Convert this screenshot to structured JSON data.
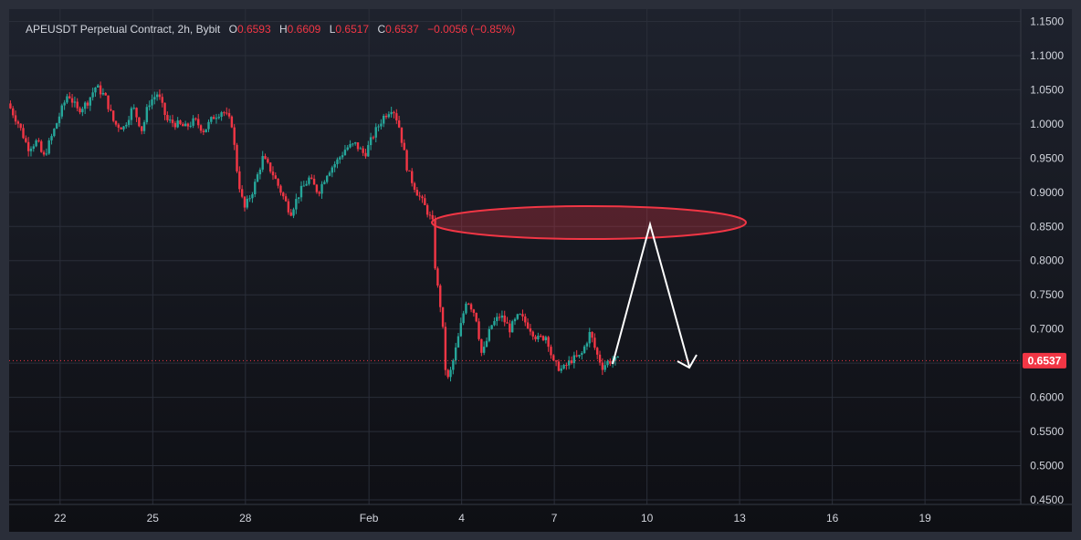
{
  "chart_data": {
    "type": "candlestick",
    "symbol": "APEUSDT Perpetual Contract",
    "interval": "2h",
    "exchange": "Bybit",
    "ohlc": {
      "O": "0.6593",
      "H": "0.6609",
      "L": "0.6517",
      "C": "0.6537",
      "change": "−0.0056",
      "change_pct": "(−0.85%)"
    },
    "last_price": 0.6537,
    "last_price_label": "0.6537",
    "ylim": [
      0.45,
      1.16
    ],
    "y_ticks": [
      "1.1500",
      "1.1000",
      "1.0500",
      "1.0000",
      "0.9500",
      "0.9000",
      "0.8500",
      "0.8000",
      "0.7500",
      "0.7000",
      "0.6500",
      "0.6000",
      "0.5500",
      "0.5000",
      "0.4500"
    ],
    "x_ticks": [
      "22",
      "25",
      "28",
      "Feb",
      "4",
      "7",
      "10",
      "13",
      "16",
      "19"
    ],
    "x_tick_days": [
      22,
      25,
      28,
      32,
      35,
      38,
      41,
      44,
      47,
      50
    ],
    "x_range": [
      20.35,
      53.1
    ],
    "grid": true,
    "up_color": "#26a69a",
    "down_color": "#f23645",
    "price_path": [
      [
        20.35,
        1.03
      ],
      [
        20.7,
        1.0
      ],
      [
        21.0,
        0.965
      ],
      [
        21.3,
        0.975
      ],
      [
        21.5,
        0.95
      ],
      [
        21.8,
        0.985
      ],
      [
        22.0,
        1.01
      ],
      [
        22.3,
        1.045
      ],
      [
        22.6,
        1.02
      ],
      [
        22.9,
        1.03
      ],
      [
        23.2,
        1.055
      ],
      [
        23.5,
        1.04
      ],
      [
        23.8,
        1.0
      ],
      [
        24.1,
        0.995
      ],
      [
        24.4,
        1.025
      ],
      [
        24.7,
        0.99
      ],
      [
        24.9,
        1.03
      ],
      [
        25.2,
        1.045
      ],
      [
        25.5,
        1.005
      ],
      [
        25.8,
        1.0
      ],
      [
        26.1,
        0.995
      ],
      [
        26.4,
        1.005
      ],
      [
        26.7,
        0.99
      ],
      [
        27.0,
        1.01
      ],
      [
        27.3,
        1.02
      ],
      [
        27.6,
        1.0
      ],
      [
        27.8,
        0.92
      ],
      [
        28.0,
        0.875
      ],
      [
        28.3,
        0.905
      ],
      [
        28.6,
        0.95
      ],
      [
        28.9,
        0.93
      ],
      [
        29.2,
        0.9
      ],
      [
        29.5,
        0.87
      ],
      [
        29.8,
        0.9
      ],
      [
        30.1,
        0.92
      ],
      [
        30.4,
        0.9
      ],
      [
        30.7,
        0.93
      ],
      [
        31.0,
        0.945
      ],
      [
        31.3,
        0.965
      ],
      [
        31.6,
        0.97
      ],
      [
        31.9,
        0.955
      ],
      [
        32.2,
        0.985
      ],
      [
        32.5,
        1.01
      ],
      [
        32.8,
        1.025
      ],
      [
        33.0,
        1.0
      ],
      [
        33.3,
        0.93
      ],
      [
        33.6,
        0.9
      ],
      [
        33.9,
        0.875
      ],
      [
        34.1,
        0.855
      ],
      [
        34.2,
        0.78
      ],
      [
        34.4,
        0.72
      ],
      [
        34.55,
        0.62
      ],
      [
        34.7,
        0.64
      ],
      [
        34.9,
        0.68
      ],
      [
        35.2,
        0.745
      ],
      [
        35.5,
        0.72
      ],
      [
        35.7,
        0.66
      ],
      [
        36.0,
        0.705
      ],
      [
        36.3,
        0.72
      ],
      [
        36.6,
        0.7
      ],
      [
        36.9,
        0.72
      ],
      [
        37.2,
        0.705
      ],
      [
        37.5,
        0.685
      ],
      [
        37.8,
        0.69
      ],
      [
        38.0,
        0.65
      ],
      [
        38.3,
        0.64
      ],
      [
        38.6,
        0.655
      ],
      [
        38.9,
        0.66
      ],
      [
        39.2,
        0.695
      ],
      [
        39.4,
        0.665
      ],
      [
        39.6,
        0.645
      ],
      [
        39.8,
        0.653
      ],
      [
        40.0,
        0.6537
      ]
    ],
    "path_end_day": 40.05
  }
}
